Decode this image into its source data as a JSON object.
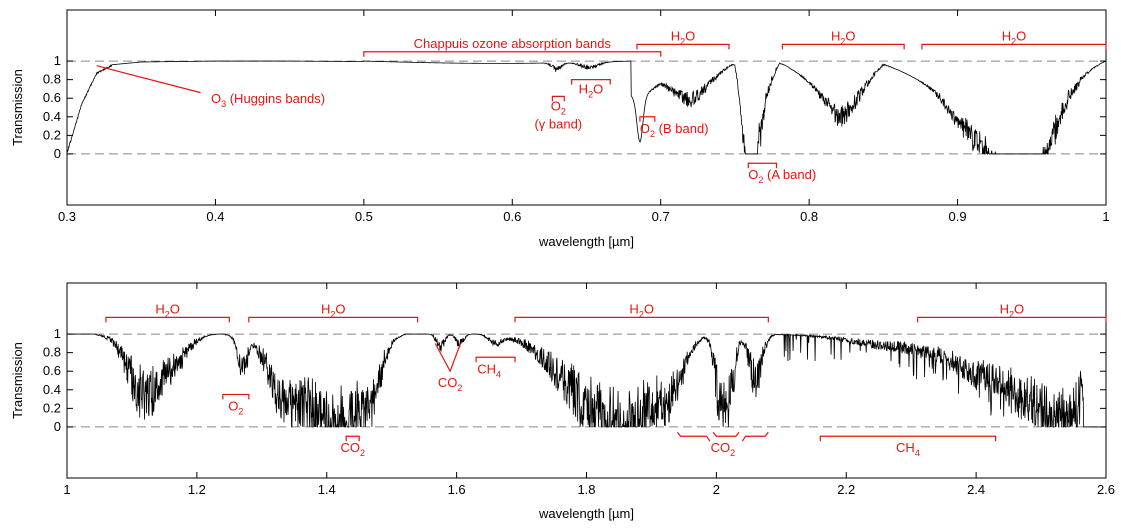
{
  "chart_data": [
    {
      "type": "line",
      "xlabel": "wavelength [µm]",
      "ylabel": "Transmission",
      "xlim": [
        0.3,
        1.0
      ],
      "ylim": [
        -0.55,
        1.0
      ],
      "x_ticks": [
        0.3,
        0.4,
        0.5,
        0.6,
        0.7,
        0.8,
        0.9,
        1.0
      ],
      "x_tick_labels": [
        "0.3",
        "0.4",
        "0.5",
        "0.6",
        "0.7",
        "0.8",
        "0.9",
        "1"
      ],
      "y_ticks": [
        0,
        0.2,
        0.4,
        0.6,
        0.8,
        1.0
      ],
      "y_tick_labels": [
        "0",
        "0.2",
        "0.4",
        "0.6",
        "0.8",
        "1"
      ],
      "reference_lines": [
        0,
        1
      ],
      "grid": false,
      "series": [
        {
          "x": [
            0.3,
            0.31,
            0.32,
            0.33,
            0.35,
            0.4,
            0.45,
            0.5,
            0.55,
            0.6,
            0.63,
            0.65,
            0.686,
            0.7,
            0.72,
            0.75,
            0.76,
            0.765,
            0.78,
            0.82,
            0.85,
            0.9,
            0.93,
            0.94,
            0.95,
            0.97,
            1.0
          ],
          "y": [
            0.02,
            0.55,
            0.88,
            0.96,
            0.99,
            1.0,
            1.0,
            0.995,
            0.985,
            0.975,
            0.94,
            0.88,
            0.58,
            0.8,
            0.75,
            0.99,
            0.1,
            0.65,
            0.99,
            0.62,
            0.98,
            0.6,
            0.35,
            0.2,
            0.3,
            0.8,
            1.0
          ]
        }
      ],
      "annotations": [
        {
          "text": "O₃ (Huggins bands)",
          "x": 0.32,
          "y": 0.95
        },
        {
          "text": "Chappuis ozone absorption bands",
          "x_range": [
            0.5,
            0.7
          ]
        },
        {
          "text": "H₂O",
          "x_range": [
            0.684,
            0.746
          ]
        },
        {
          "text": "H₂O",
          "x_range": [
            0.782,
            0.864
          ]
        },
        {
          "text": "H₂O",
          "x_range": [
            0.876,
            1.0
          ]
        },
        {
          "text": "O₂",
          "x_range": [
            0.627,
            0.635
          ]
        },
        {
          "text": "(γ band)",
          "x": 0.63
        },
        {
          "text": "H₂O",
          "x_range": [
            0.64,
            0.666
          ]
        },
        {
          "text": "O₂ (B band)",
          "x_range": [
            0.686,
            0.696
          ]
        },
        {
          "text": "O₂ (A band)",
          "x_range": [
            0.759,
            0.778
          ]
        }
      ]
    },
    {
      "type": "line",
      "xlabel": "wavelength [µm]",
      "ylabel": "Transmission",
      "xlim": [
        1.0,
        2.6
      ],
      "ylim": [
        -0.55,
        1.0
      ],
      "x_ticks": [
        1.0,
        1.2,
        1.4,
        1.6,
        1.8,
        2.0,
        2.2,
        2.4,
        2.6
      ],
      "x_tick_labels": [
        "1",
        "1.2",
        "1.4",
        "1.6",
        "1.8",
        "2",
        "2.2",
        "2.4",
        "2.6"
      ],
      "y_ticks": [
        0,
        0.2,
        0.4,
        0.6,
        0.8,
        1.0
      ],
      "y_tick_labels": [
        "0",
        "0.2",
        "0.4",
        "0.6",
        "0.8",
        "1"
      ],
      "reference_lines": [
        0,
        1
      ],
      "grid": false,
      "series": [
        {
          "x": [
            1.0,
            1.08,
            1.1,
            1.13,
            1.16,
            1.2,
            1.27,
            1.3,
            1.35,
            1.38,
            1.42,
            1.47,
            1.5,
            1.58,
            1.6,
            1.65,
            1.7,
            1.8,
            1.85,
            1.9,
            1.95,
            2.0,
            2.02,
            2.05,
            2.07,
            2.1,
            2.2,
            2.35,
            2.45,
            2.52,
            2.56,
            2.6
          ],
          "y": [
            1.0,
            0.99,
            0.6,
            0.05,
            0.55,
            0.92,
            0.4,
            0.93,
            0.0,
            0.0,
            0.05,
            0.25,
            0.96,
            0.8,
            0.9,
            0.97,
            0.9,
            0.0,
            0.0,
            0.0,
            0.5,
            0.1,
            0.05,
            0.7,
            0.2,
            0.97,
            0.95,
            0.82,
            0.45,
            0.2,
            0.0,
            0.0
          ]
        }
      ],
      "annotations": [
        {
          "text": "H₂O",
          "x_range": [
            1.06,
            1.25
          ]
        },
        {
          "text": "H₂O",
          "x_range": [
            1.28,
            1.54
          ]
        },
        {
          "text": "H₂O",
          "x_range": [
            1.69,
            2.08
          ]
        },
        {
          "text": "H₂O",
          "x_range": [
            2.31,
            2.6
          ]
        },
        {
          "text": "O₂",
          "x_range": [
            1.24,
            1.28
          ]
        },
        {
          "text": "CO₂",
          "x_range": [
            1.43,
            1.45
          ]
        },
        {
          "text": "CO₂",
          "x": [
            1.57,
            1.61
          ]
        },
        {
          "text": "CH₄",
          "x_range": [
            1.63,
            1.69
          ]
        },
        {
          "text": "CO₂",
          "x_range": [
            1.94,
            2.08
          ]
        },
        {
          "text": "CH₄",
          "x_range": [
            2.16,
            2.43
          ]
        }
      ]
    }
  ]
}
